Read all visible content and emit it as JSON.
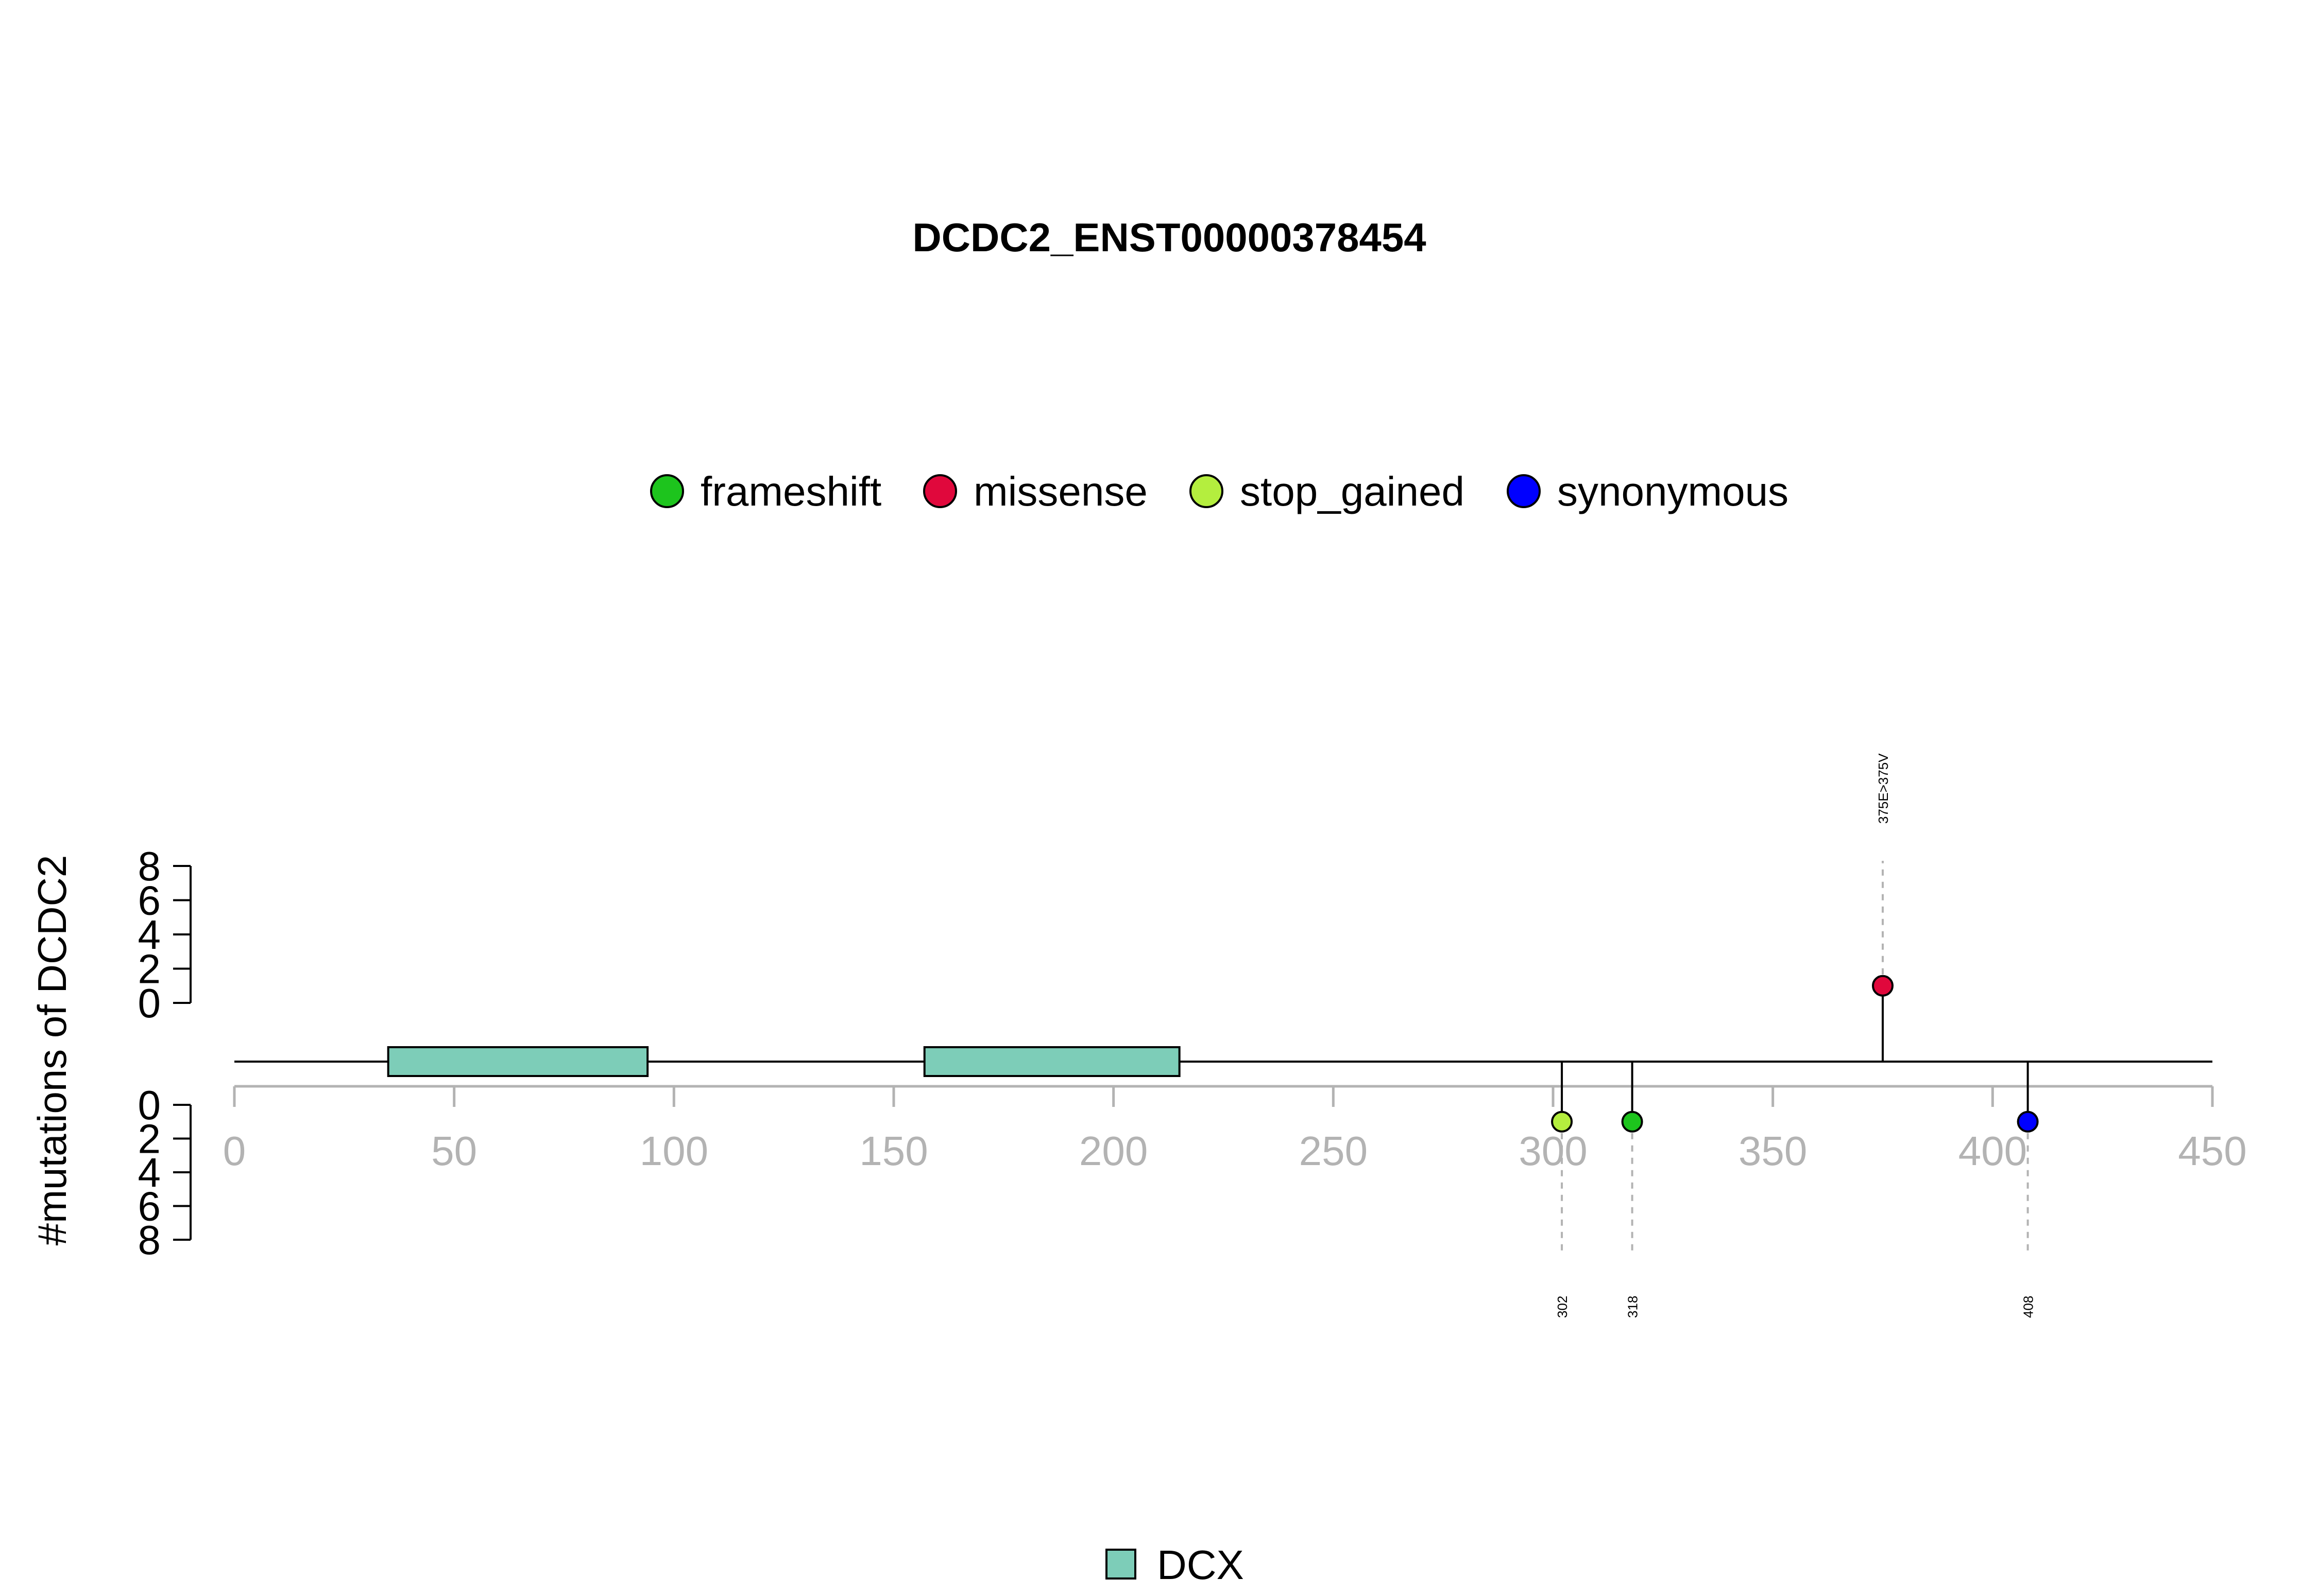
{
  "chart_data": {
    "type": "lollipop",
    "title": "DCDC2_ENST00000378454",
    "ylabel": "#mutations of DCDC2",
    "xlim": [
      0,
      450
    ],
    "xticks": [
      0,
      50,
      100,
      150,
      200,
      250,
      300,
      350,
      400,
      450
    ],
    "ylim_top": [
      0,
      8
    ],
    "ylim_bottom": [
      0,
      8
    ],
    "yticks": [
      0,
      2,
      4,
      6,
      8
    ],
    "protein_length": 450,
    "legend": {
      "placement": "top-center",
      "items": [
        {
          "label": "frameshift",
          "color": "#1dc41d"
        },
        {
          "label": "missense",
          "color": "#e0083c"
        },
        {
          "label": "stop_gained",
          "color": "#b4ee3e"
        },
        {
          "label": "synonymous",
          "color": "#0000ff"
        }
      ]
    },
    "domains": [
      {
        "name": "DCX",
        "start": 35,
        "end": 94,
        "color": "#7dcdb8"
      },
      {
        "name": "DCX",
        "start": 157,
        "end": 215,
        "color": "#7dcdb8"
      }
    ],
    "domain_legend": {
      "placement": "bottom-center",
      "items": [
        {
          "label": "DCX",
          "color": "#7dcdb8"
        }
      ]
    },
    "mutations": [
      {
        "position": 375,
        "count": 1,
        "side": "top",
        "type": "missense",
        "label": "375E>375V"
      },
      {
        "position": 302,
        "count": 1,
        "side": "bottom",
        "type": "stop_gained",
        "label": "302"
      },
      {
        "position": 318,
        "count": 1,
        "side": "bottom",
        "type": "frameshift",
        "label": "318"
      },
      {
        "position": 408,
        "count": 1,
        "side": "bottom",
        "type": "synonymous",
        "label": "408"
      }
    ]
  }
}
